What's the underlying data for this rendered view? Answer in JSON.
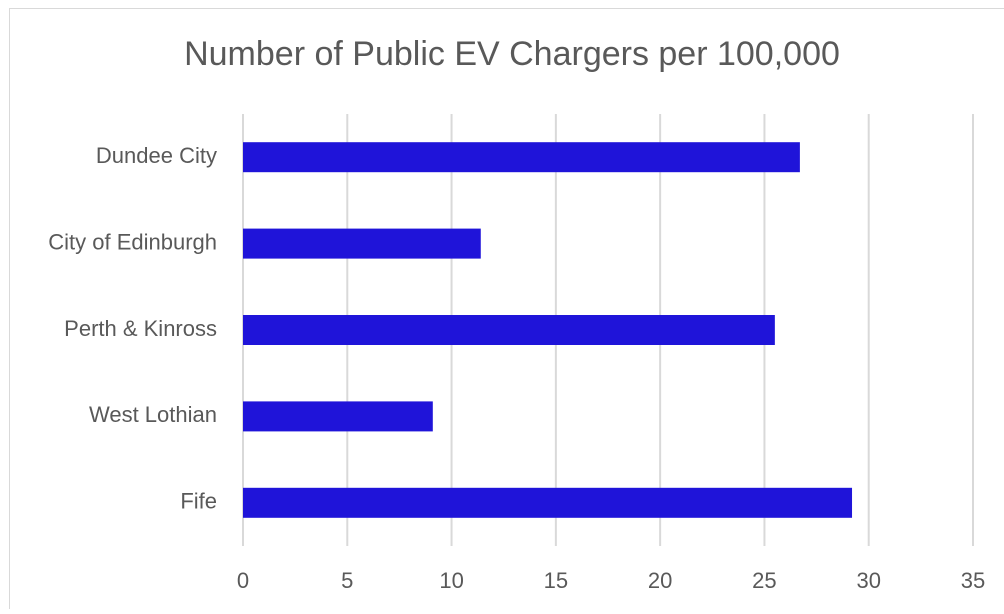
{
  "chart_data": {
    "type": "bar",
    "orientation": "horizontal",
    "title": "Number of Public EV Chargers per 100,000",
    "categories": [
      "Dundee City",
      "City of Edinburgh",
      "Perth & Kinross",
      "West Lothian",
      "Fife"
    ],
    "values": [
      26.7,
      11.4,
      25.5,
      9.1,
      29.2
    ],
    "color": "#1f14d9",
    "xlim": [
      0,
      35
    ],
    "xticks": [
      0,
      5,
      10,
      15,
      20,
      25,
      30,
      35
    ],
    "grid": true
  }
}
